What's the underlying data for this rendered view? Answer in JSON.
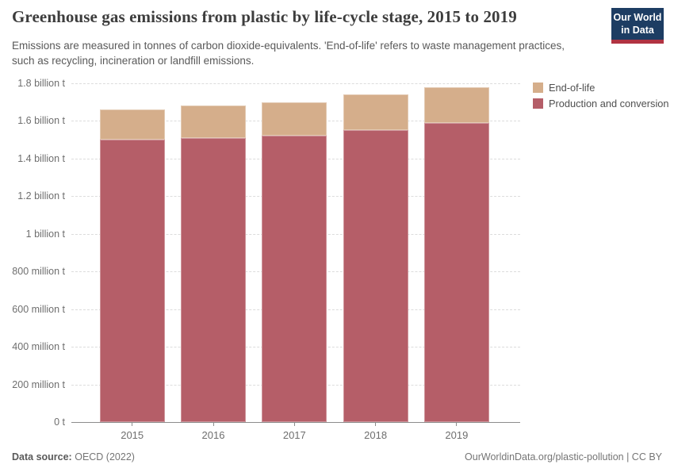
{
  "header": {
    "title": "Greenhouse gas emissions from plastic by life-cycle stage, 2015 to 2019",
    "subtitle": "Emissions are measured in tonnes of carbon dioxide-equivalents. 'End-of-life' refers to waste management practices, such as recycling, incineration or landfill emissions.",
    "logo": {
      "line1": "Our World",
      "line2": "in Data",
      "bg_color": "#1d3d63",
      "accent_color": "#b13342"
    }
  },
  "legend": {
    "items": [
      {
        "label": "End-of-life",
        "color": "#d5ae8b"
      },
      {
        "label": "Production and conversion",
        "color": "#b55e68"
      }
    ]
  },
  "chart_data": {
    "type": "bar",
    "stacked": true,
    "title": "Greenhouse gas emissions from plastic by life-cycle stage, 2015 to 2019",
    "xlabel": "",
    "ylabel": "",
    "unit": "billion tonnes of carbon dioxide-equivalents",
    "categories": [
      "2015",
      "2016",
      "2017",
      "2018",
      "2019"
    ],
    "series": [
      {
        "name": "Production and conversion",
        "color": "#b55e68",
        "values": [
          1.5,
          1.51,
          1.52,
          1.55,
          1.59
        ]
      },
      {
        "name": "End-of-life",
        "color": "#d5ae8b",
        "values": [
          0.16,
          0.17,
          0.18,
          0.19,
          0.19
        ]
      }
    ],
    "ylim": [
      0,
      1.8
    ],
    "yticks": [
      {
        "value": 0,
        "label": "0 t"
      },
      {
        "value": 0.2,
        "label": "200 million t"
      },
      {
        "value": 0.4,
        "label": "400 million t"
      },
      {
        "value": 0.6,
        "label": "600 million t"
      },
      {
        "value": 0.8,
        "label": "800 million t"
      },
      {
        "value": 1.0,
        "label": "1 billion t"
      },
      {
        "value": 1.2,
        "label": "1.2 billion t"
      },
      {
        "value": 1.4,
        "label": "1.4 billion t"
      },
      {
        "value": 1.6,
        "label": "1.6 billion t"
      },
      {
        "value": 1.8,
        "label": "1.8 billion t"
      }
    ],
    "grid": "horizontal-dashed",
    "legend_position": "right"
  },
  "footer": {
    "source_label": "Data source:",
    "source_value": "OECD (2022)",
    "link": "OurWorldinData.org/plastic-pollution | CC BY"
  }
}
